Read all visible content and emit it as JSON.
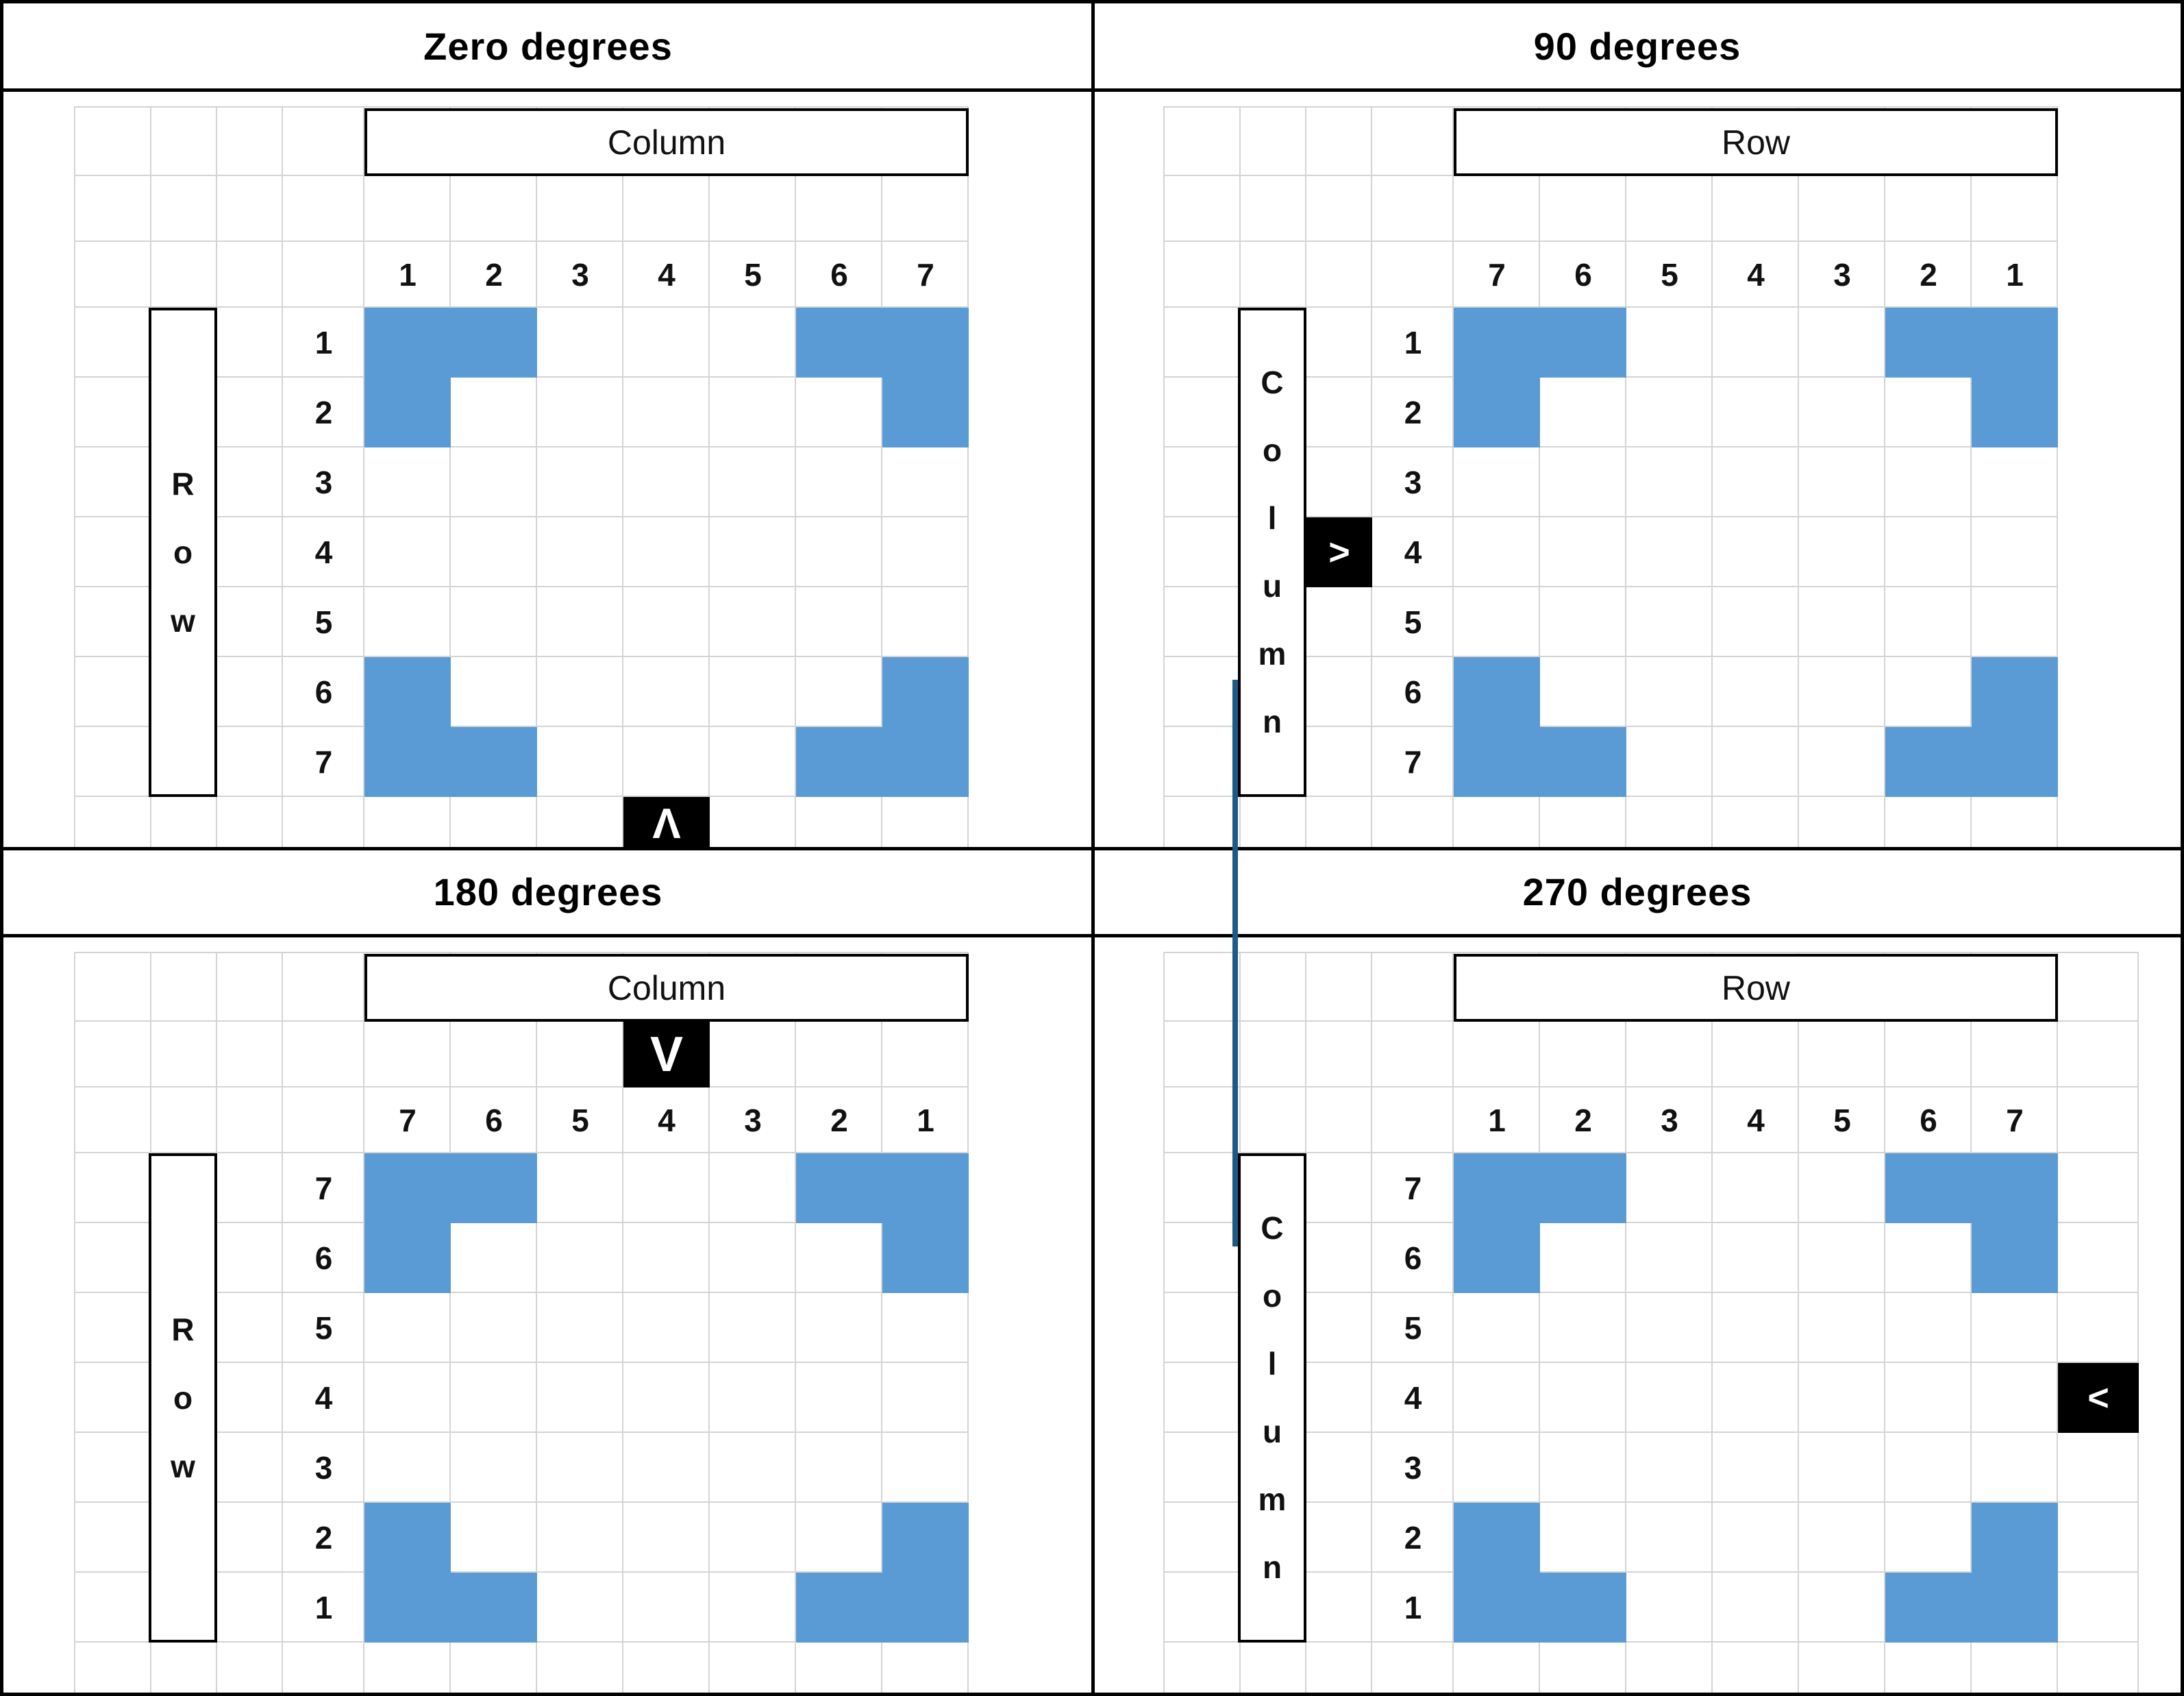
{
  "colors": {
    "shape_fill": "#5B9BD5",
    "connector_line": "#1D5B84",
    "gridline": "#D4D4D4",
    "box_border": "#000000",
    "marker_bg": "#000000",
    "marker_fg": "#FFFFFF",
    "text": "#111111"
  },
  "grid": {
    "rows": 7,
    "cols": 7,
    "shape_cells": [
      [
        1,
        1
      ],
      [
        1,
        2
      ],
      [
        1,
        6
      ],
      [
        1,
        7
      ],
      [
        2,
        1
      ],
      [
        2,
        7
      ],
      [
        6,
        1
      ],
      [
        6,
        7
      ],
      [
        7,
        1
      ],
      [
        7,
        2
      ],
      [
        7,
        6
      ],
      [
        7,
        7
      ]
    ]
  },
  "panels": [
    {
      "id": "zero-degrees",
      "title": "Zero degrees",
      "header_label": "Column",
      "side_label": "Row",
      "side_letters": [
        "R",
        "o",
        "w"
      ],
      "col_labels": [
        "1",
        "2",
        "3",
        "4",
        "5",
        "6",
        "7"
      ],
      "row_labels": [
        "1",
        "2",
        "3",
        "4",
        "5",
        "6",
        "7"
      ],
      "marker": {
        "name": "up-arrow-marker",
        "glyph": "Λ",
        "edge": "bottom",
        "slot": 4
      }
    },
    {
      "id": "90-degrees",
      "title": "90 degrees",
      "header_label": "Row",
      "side_label": "Column",
      "side_letters": [
        "C",
        "o",
        "l",
        "u",
        "m",
        "n"
      ],
      "col_labels": [
        "7",
        "6",
        "5",
        "4",
        "3",
        "2",
        "1"
      ],
      "row_labels": [
        "1",
        "2",
        "3",
        "4",
        "5",
        "6",
        "7"
      ],
      "marker": {
        "name": "right-arrow-marker",
        "glyph": ">",
        "edge": "left",
        "slot": 4
      }
    },
    {
      "id": "180-degrees",
      "title": "180 degrees",
      "header_label": "Column",
      "side_label": "Row",
      "side_letters": [
        "R",
        "o",
        "w"
      ],
      "col_labels": [
        "7",
        "6",
        "5",
        "4",
        "3",
        "2",
        "1"
      ],
      "row_labels": [
        "7",
        "6",
        "5",
        "4",
        "3",
        "2",
        "1"
      ],
      "marker": {
        "name": "down-arrow-marker",
        "glyph": "V",
        "edge": "top",
        "slot": 4
      }
    },
    {
      "id": "270-degrees",
      "title": "270 degrees",
      "header_label": "Row",
      "side_label": "Column",
      "side_letters": [
        "C",
        "o",
        "l",
        "u",
        "m",
        "n"
      ],
      "col_labels": [
        "1",
        "2",
        "3",
        "4",
        "5",
        "6",
        "7"
      ],
      "row_labels": [
        "7",
        "6",
        "5",
        "4",
        "3",
        "2",
        "1"
      ],
      "marker": {
        "name": "left-arrow-marker",
        "glyph": "<",
        "edge": "right",
        "slot": 4
      }
    }
  ],
  "connector_line": {
    "name": "vertical-connector-line",
    "orientation": "vertical"
  }
}
